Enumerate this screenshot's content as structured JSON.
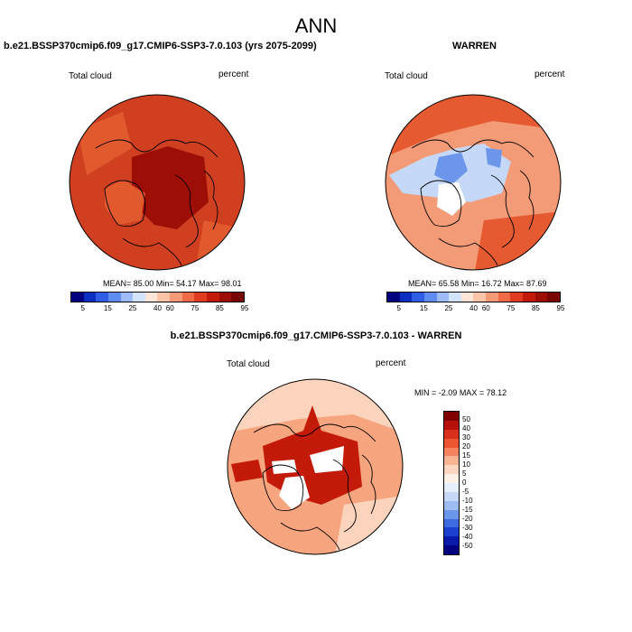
{
  "figure_title": "ANN",
  "panels": {
    "left": {
      "title": "b.e21.BSSP370cmip6.f09_g17.CMIP6-SSP3-7.0.103 (yrs 2075-2099)",
      "variable": "Total cloud",
      "units": "percent",
      "stats": {
        "mean": "85.00",
        "min": "54.17",
        "max": "98.01"
      }
    },
    "right": {
      "title": "WARREN",
      "variable": "Total cloud",
      "units": "percent",
      "stats": {
        "mean": "65.58",
        "min": "16.72",
        "max": "87.69"
      }
    },
    "diff": {
      "title": "b.e21.BSSP370cmip6.f09_g17.CMIP6-SSP3-7.0.103 - WARREN",
      "variable": "Total cloud",
      "units": "percent",
      "stats": {
        "min": "-2.09",
        "max": "78.12"
      }
    }
  },
  "labels": {
    "mean": "MEAN=",
    "min": "Min=",
    "max": "Max=",
    "min_caps": "MIN =",
    "max_caps": "MAX ="
  },
  "colorbar_abs": {
    "ticks": [
      "5",
      "15",
      "25",
      "40",
      "60",
      "75",
      "85",
      "95"
    ],
    "colors": [
      "#000080",
      "#0b2fc0",
      "#2e5de6",
      "#5f8cf2",
      "#9dbcf7",
      "#d2e4fb",
      "#fde6d8",
      "#fbc4a8",
      "#f69a76",
      "#ef6b48",
      "#e03c20",
      "#c41a0a",
      "#9c0e06",
      "#780404"
    ]
  },
  "colorbar_diff": {
    "ticks": [
      "50",
      "40",
      "30",
      "20",
      "15",
      "10",
      "5",
      "0",
      "-5",
      "-10",
      "-15",
      "-20",
      "-30",
      "-40",
      "-50"
    ],
    "colors": [
      "#800000",
      "#b5110a",
      "#d8301a",
      "#ec5530",
      "#f5845e",
      "#fab491",
      "#fdd6c2",
      "#fff0e8",
      "#e6effc",
      "#c6d8f7",
      "#9dbcf2",
      "#6b96ea",
      "#3e6be0",
      "#1d3fd0",
      "#0a1aa8",
      "#000080"
    ]
  },
  "map_colors": {
    "left_base": "#d04020",
    "left_dark": "#9c0e06",
    "left_mid": "#e05a2e",
    "right_base": "#f39a76",
    "right_dark": "#e55a30",
    "right_blue": "#6b96ea",
    "right_pale": "#c6d8f7",
    "diff_base": "#f7a57e",
    "diff_dark": "#c41a0a",
    "diff_pale": "#fcd3bd"
  }
}
